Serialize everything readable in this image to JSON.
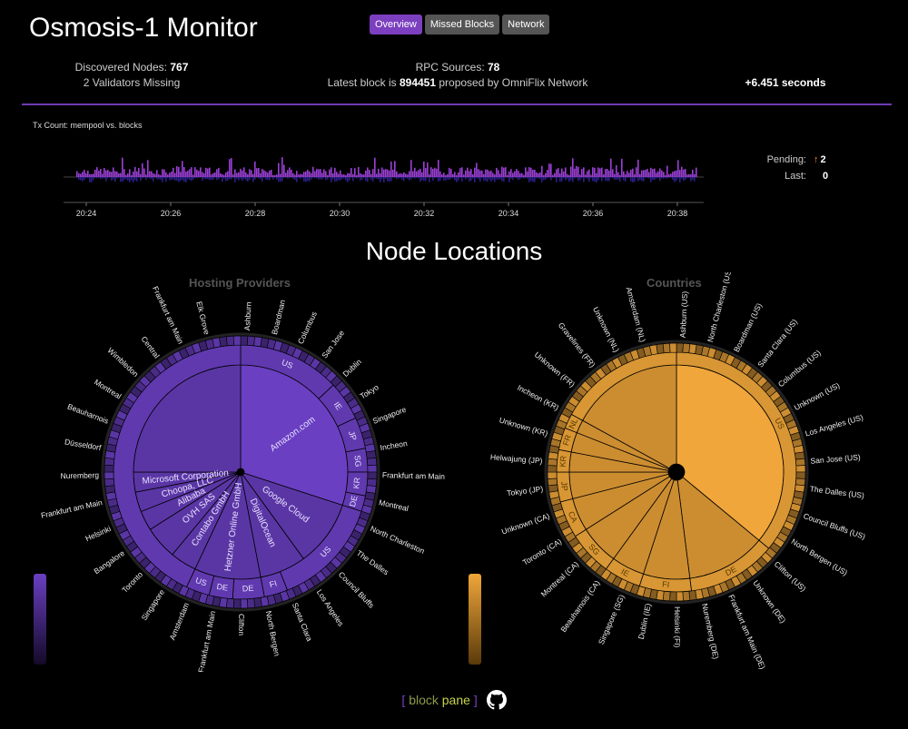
{
  "app": {
    "title": "Osmosis-1 Monitor"
  },
  "tabs": [
    {
      "label": "Overview",
      "active": true
    },
    {
      "label": "Missed Blocks",
      "active": false
    },
    {
      "label": "Network",
      "active": false
    }
  ],
  "stats": {
    "discovered_label": "Discovered Nodes:",
    "discovered_value": "767",
    "validators_missing": "2 Validators Missing",
    "rpc_label": "RPC Sources:",
    "rpc_value": "78",
    "latest_prefix": "Latest block is",
    "latest_block": "894451",
    "latest_suffix": "proposed by OmniFlix Network",
    "block_time": "+6.451 seconds"
  },
  "tx_chart": {
    "label": "Tx Count: mempool vs. blocks",
    "times": [
      "20:24",
      "20:26",
      "20:28",
      "20:30",
      "20:32",
      "20:34",
      "20:36",
      "20:38"
    ],
    "mempool_color": "#9b3fd6",
    "blocks_color": "#2a1f8a"
  },
  "pending": {
    "pending_label": "Pending:",
    "pending_value": "2",
    "last_label": "Last:",
    "last_value": "0"
  },
  "section_title": "Node Locations",
  "chart_data": [
    {
      "type": "sunburst",
      "title": "Hosting Providers",
      "color": "#6a3fc2",
      "inner_labels": [
        "Amazon.com",
        "Google Cloud",
        "DigitalOcean",
        "Hetzner Online GmbH",
        "Contabo GmbH",
        "OVH SAS",
        "Alibaba",
        "Choopa, LLC",
        "Microsoft Corporation"
      ],
      "ring_labels": [
        "US",
        "IE",
        "JP",
        "SG",
        "KR",
        "DE",
        "US",
        "FI",
        "DE",
        "DE",
        "US"
      ],
      "outer_labels": [
        "Ashburn",
        "Boardman",
        "Columbus",
        "San Jose",
        "Dublin",
        "Tokyo",
        "Singapore",
        "Incheon",
        "Frankfurt am Main",
        "Montreal",
        "North Charleston",
        "The Dalles",
        "Council Bluffs",
        "Los Angeles",
        "Santa Clara",
        "North Bergen",
        "Clifton",
        "Frankfurt am Main",
        "Amsterdam",
        "Singapore",
        "Toronto",
        "Bangalore",
        "Helsinki",
        "Frankfurt am Main",
        "Nuremberg",
        "Düsseldorf",
        "Beauharnois",
        "Montreal",
        "Wimbledon",
        "Central",
        "Frankfurt am Main",
        "Elk Grove"
      ]
    },
    {
      "type": "sunburst",
      "title": "Countries",
      "color": "#f0a63a",
      "ring_labels": [
        "US",
        "DE",
        "FI",
        "IE",
        "SG",
        "CA",
        "JP",
        "KR",
        "FR",
        "NL"
      ],
      "outer_labels": [
        "Ashburn (US)",
        "North Charleston (US)",
        "Boardman (US)",
        "Santa Clara (US)",
        "Columbus (US)",
        "Unknown (US)",
        "Los Angeles (US)",
        "San Jose (US)",
        "The Dalles (US)",
        "Council Bluffs (US)",
        "North Bergen (US)",
        "Clifton (US)",
        "Unknown (DE)",
        "Frankfurt am Main (DE)",
        "Nuremberg (DE)",
        "Helsinki (FI)",
        "Dublin (IE)",
        "Singapore (SG)",
        "Beauharnois (CA)",
        "Montreal (CA)",
        "Toronto (CA)",
        "Unknown (CA)",
        "Tokyo (JP)",
        "Helwajung (JP)",
        "Unknown (KR)",
        "Incheon (KR)",
        "Unknown (FR)",
        "Gravelines (FR)",
        "Unknown (NL)",
        "Amsterdam (NL)"
      ]
    }
  ],
  "footer": {
    "open": "[",
    "word1": "block",
    "word2": "pane",
    "close": "]"
  }
}
